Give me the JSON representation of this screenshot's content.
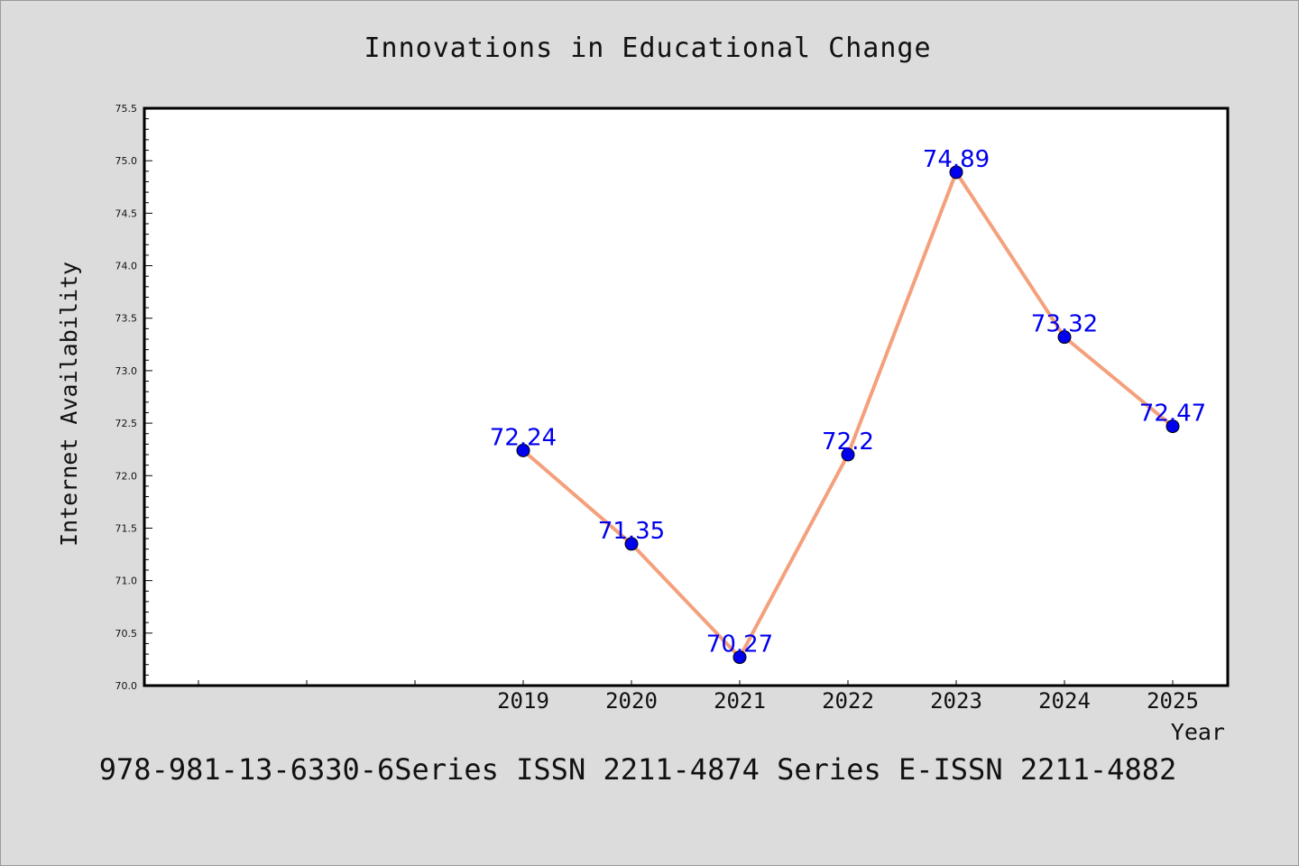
{
  "chart_data": {
    "type": "line",
    "title": "Innovations in Educational Change",
    "xlabel": "Year",
    "ylabel": "Internet Availability",
    "categories": [
      "2019",
      "2020",
      "2021",
      "2022",
      "2023",
      "2024",
      "2025"
    ],
    "series": [
      {
        "values": [
          72.24,
          71.35,
          70.27,
          72.2,
          74.89,
          73.32,
          72.47
        ],
        "labels": [
          "72.24",
          "71.35",
          "70.27",
          "72.2",
          "74.89",
          "73.32",
          "72.47"
        ],
        "line_color": "#f4a07c",
        "marker_color": "#0000ee"
      }
    ],
    "x_slots_before_data": 3,
    "ylim": [
      70.0,
      75.5
    ],
    "y_ticks": [
      "70.0",
      "70.5",
      "71.0",
      "71.5",
      "72.0",
      "72.5",
      "73.0",
      "73.5",
      "74.0",
      "74.5",
      "75.0",
      "75.5"
    ],
    "grid": false,
    "legend": "none"
  },
  "footer_text": "978-981-13-6330-6Series ISSN 2211-4874 Series E-ISSN 2211-4882"
}
